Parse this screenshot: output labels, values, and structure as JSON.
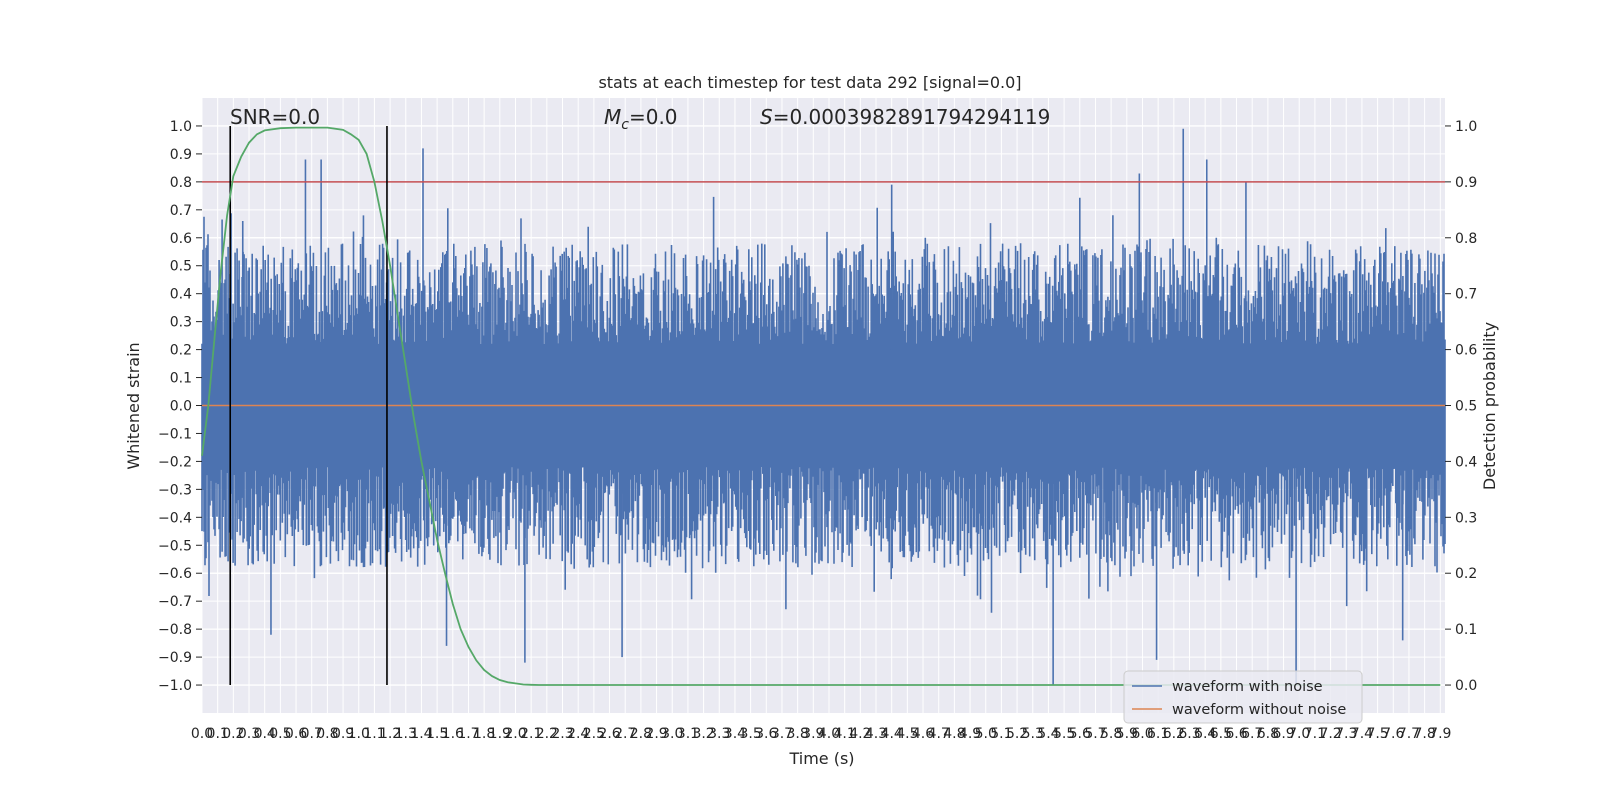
{
  "chart_data": {
    "type": "line",
    "title": "stats at each timestep for test data 292 [signal=0.0]",
    "xlabel": "Time (s)",
    "ylabel": "Whitened strain",
    "y2label": "Detection probability",
    "annotations": {
      "snr": "SNR=0.0",
      "mc_symbol": "M",
      "mc_subscript": "c",
      "mc_value": "=0.0",
      "s_symbol": "S",
      "s_value": "=0.0003982891794294119"
    },
    "xlim": [
      0.0,
      7.93
    ],
    "ylim": [
      -1.1,
      1.1
    ],
    "y2lim": [
      -0.05,
      1.05
    ],
    "x_tick_labels": [
      "0.0",
      "0.1",
      "0.2",
      "0.3",
      "0.4",
      "0.5",
      "0.6",
      "0.7",
      "0.8",
      "0.9",
      "1.0",
      "1.1",
      "1.2",
      "1.3",
      "1.4",
      "1.5",
      "1.6",
      "1.7",
      "1.8",
      "1.9",
      "2.0",
      "2.1",
      "2.2",
      "2.3",
      "2.4",
      "2.5",
      "2.6",
      "2.7",
      "2.8",
      "2.9",
      "3.0",
      "3.1",
      "3.2",
      "3.3",
      "3.4",
      "3.5",
      "3.6",
      "3.7",
      "3.8",
      "3.9",
      "4.0",
      "4.1",
      "4.2",
      "4.3",
      "4.4",
      "4.5",
      "4.6",
      "4.7",
      "4.8",
      "4.9",
      "5.0",
      "5.1",
      "5.2",
      "5.3",
      "5.4",
      "5.5",
      "5.6",
      "5.7",
      "5.8",
      "5.9",
      "6.0",
      "6.1",
      "6.2",
      "6.3",
      "6.4",
      "6.5",
      "6.6",
      "6.7",
      "6.8",
      "6.9",
      "7.0",
      "7.1",
      "7.2",
      "7.3",
      "7.4",
      "7.5",
      "7.6",
      "7.7",
      "7.8",
      "7.9"
    ],
    "y_tick_labels": [
      "1.0",
      "0.9",
      "0.8",
      "0.7",
      "0.6",
      "0.5",
      "0.4",
      "0.3",
      "0.2",
      "0.1",
      "0.0",
      "−0.1",
      "−0.2",
      "−0.3",
      "−0.4",
      "−0.5",
      "−0.6",
      "−0.7",
      "−0.8",
      "−0.9",
      "−1.0"
    ],
    "y2_tick_labels": [
      "1.0",
      "0.9",
      "0.8",
      "0.7",
      "0.6",
      "0.5",
      "0.4",
      "0.3",
      "0.2",
      "0.1",
      "0.0"
    ],
    "series": [
      {
        "name": "waveform with noise",
        "color": "#4c72b0",
        "description_values": "dense noise bursts, typical envelope about +0.3 to +0.6 and -0.3 to -0.6",
        "spikes": [
          {
            "x": 0.26,
            "y": 0.66
          },
          {
            "x": 0.44,
            "y": -0.82
          },
          {
            "x": 0.66,
            "y": 0.88
          },
          {
            "x": 0.76,
            "y": 0.88
          },
          {
            "x": 1.03,
            "y": 0.68
          },
          {
            "x": 1.41,
            "y": 0.92
          },
          {
            "x": 1.56,
            "y": -0.86
          },
          {
            "x": 2.06,
            "y": -0.92
          },
          {
            "x": 2.68,
            "y": -0.9
          },
          {
            "x": 4.4,
            "y": 0.79
          },
          {
            "x": 5.43,
            "y": -1.0
          },
          {
            "x": 5.98,
            "y": 0.83
          },
          {
            "x": 6.09,
            "y": -0.91
          },
          {
            "x": 6.26,
            "y": 0.99
          },
          {
            "x": 6.41,
            "y": 0.88
          },
          {
            "x": 6.66,
            "y": 0.8
          },
          {
            "x": 6.98,
            "y": -1.0
          },
          {
            "x": 7.66,
            "y": -0.84
          }
        ]
      },
      {
        "name": "waveform without noise",
        "color": "#dd8452",
        "values_constant": 0.0
      },
      {
        "name": "detection probability",
        "color": "#55a868",
        "axis": "right",
        "x": [
          0.0,
          0.04,
          0.08,
          0.12,
          0.16,
          0.2,
          0.25,
          0.3,
          0.35,
          0.4,
          0.5,
          0.6,
          0.7,
          0.8,
          0.9,
          0.95,
          1.0,
          1.05,
          1.1,
          1.15,
          1.2,
          1.25,
          1.3,
          1.35,
          1.4,
          1.45,
          1.5,
          1.55,
          1.6,
          1.65,
          1.7,
          1.75,
          1.8,
          1.85,
          1.9,
          1.95,
          2.0,
          2.05,
          2.1,
          2.15,
          2.2,
          2.3,
          2.5,
          3.0,
          4.0,
          5.0,
          6.0,
          7.0,
          7.9
        ],
        "y": [
          0.41,
          0.5,
          0.62,
          0.74,
          0.84,
          0.91,
          0.945,
          0.97,
          0.985,
          0.992,
          0.996,
          0.997,
          0.997,
          0.997,
          0.993,
          0.985,
          0.975,
          0.95,
          0.9,
          0.83,
          0.75,
          0.66,
          0.57,
          0.48,
          0.4,
          0.33,
          0.26,
          0.2,
          0.145,
          0.1,
          0.068,
          0.044,
          0.027,
          0.016,
          0.009,
          0.005,
          0.003,
          0.001,
          0.0005,
          0.0,
          0.0,
          0.0,
          0.0,
          0.0,
          0.0,
          0.0,
          0.0,
          0.0,
          0.0
        ]
      }
    ],
    "threshold_line": {
      "value": 0.9,
      "axis": "right",
      "color": "#c44e52"
    },
    "vertical_markers": [
      0.18,
      1.18
    ],
    "legend": {
      "placement": "lower-right"
    },
    "grid": true,
    "background": "#eaeaf2"
  }
}
